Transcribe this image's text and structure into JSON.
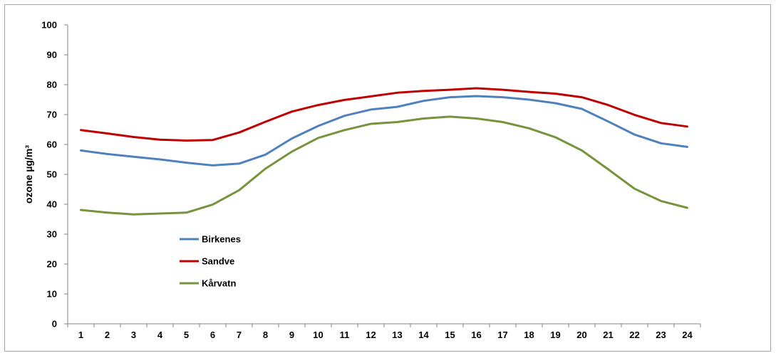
{
  "chart_data": {
    "type": "line",
    "title": "",
    "xlabel": "",
    "ylabel": "ozone µg/m³",
    "categories": [
      "1",
      "2",
      "3",
      "4",
      "5",
      "6",
      "7",
      "8",
      "9",
      "10",
      "11",
      "12",
      "13",
      "14",
      "15",
      "16",
      "17",
      "18",
      "19",
      "20",
      "21",
      "22",
      "23",
      "24"
    ],
    "yticks": [
      "0",
      "10",
      "20",
      "30",
      "40",
      "50",
      "60",
      "70",
      "80",
      "90",
      "100"
    ],
    "ylim": [
      0,
      100
    ],
    "grid": false,
    "legend_position": "left-lower-inside",
    "series": [
      {
        "name": "Birkenes",
        "color": "#4f81bd",
        "values": [
          58.0,
          56.8,
          55.9,
          55.0,
          53.9,
          53.0,
          53.6,
          56.6,
          62.0,
          66.2,
          69.6,
          71.7,
          72.6,
          74.6,
          75.8,
          76.2,
          75.8,
          75.0,
          73.8,
          71.9,
          67.7,
          63.3,
          60.4,
          59.2
        ]
      },
      {
        "name": "Sandve",
        "color": "#c00000",
        "values": [
          64.8,
          63.7,
          62.5,
          61.6,
          61.3,
          61.5,
          64.0,
          67.6,
          71.0,
          73.2,
          74.9,
          76.1,
          77.3,
          77.9,
          78.3,
          78.8,
          78.3,
          77.6,
          77.0,
          75.8,
          73.2,
          69.9,
          67.2,
          66.0
        ]
      },
      {
        "name": "Kårvatn",
        "color": "#77933c",
        "values": [
          38.1,
          37.2,
          36.6,
          36.9,
          37.2,
          39.9,
          44.7,
          51.9,
          57.6,
          62.2,
          64.8,
          66.9,
          67.5,
          68.7,
          69.3,
          68.7,
          67.5,
          65.4,
          62.4,
          58.0,
          51.7,
          45.2,
          41.1,
          38.8
        ]
      }
    ]
  }
}
